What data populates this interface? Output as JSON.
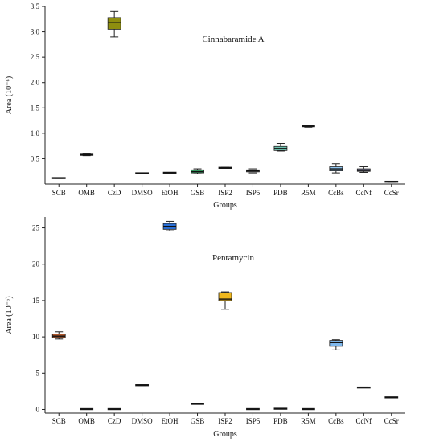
{
  "chart_data": [
    {
      "type": "box",
      "title": "Cinnabaramide A",
      "xlabel": "Groups",
      "ylabel": "Area (10⁻⁶)",
      "ylim": [
        0,
        3.5
      ],
      "yticks": [
        0.5,
        1.0,
        1.5,
        2.0,
        2.5,
        3.0,
        3.5
      ],
      "ytick_labels": [
        "0.5",
        "1.0",
        "1.5",
        "2.0",
        "2.5",
        "3.0",
        "3.5"
      ],
      "categories": [
        "SCB",
        "OMB",
        "CzD",
        "DMSO",
        "EtOH",
        "GSB",
        "ISP2",
        "ISP5",
        "PDB",
        "R5M",
        "CcBs",
        "CcNf",
        "CcSr"
      ],
      "boxes": [
        {
          "min": 0.11,
          "q1": 0.115,
          "median": 0.115,
          "q3": 0.12,
          "max": 0.125,
          "color": "#2e2e2e"
        },
        {
          "min": 0.56,
          "q1": 0.565,
          "median": 0.575,
          "q3": 0.59,
          "max": 0.6,
          "color": "#6f6f6f"
        },
        {
          "min": 2.9,
          "q1": 3.05,
          "median": 3.18,
          "q3": 3.28,
          "max": 3.4,
          "color": "#8f8f0f"
        },
        {
          "min": 0.21,
          "q1": 0.21,
          "median": 0.21,
          "q3": 0.215,
          "max": 0.215,
          "color": "#2e2e2e"
        },
        {
          "min": 0.22,
          "q1": 0.22,
          "median": 0.225,
          "q3": 0.225,
          "max": 0.23,
          "color": "#2e2e2e"
        },
        {
          "min": 0.2,
          "q1": 0.22,
          "median": 0.245,
          "q3": 0.28,
          "max": 0.3,
          "color": "#3aa86a"
        },
        {
          "min": 0.31,
          "q1": 0.315,
          "median": 0.32,
          "q3": 0.325,
          "max": 0.33,
          "color": "#4a4a4a"
        },
        {
          "min": 0.22,
          "q1": 0.24,
          "median": 0.26,
          "q3": 0.28,
          "max": 0.3,
          "color": "#7a7a7a"
        },
        {
          "min": 0.65,
          "q1": 0.66,
          "median": 0.7,
          "q3": 0.74,
          "max": 0.8,
          "color": "#6fc2b0"
        },
        {
          "min": 1.12,
          "q1": 1.13,
          "median": 1.14,
          "q3": 1.15,
          "max": 1.16,
          "color": "#444444"
        },
        {
          "min": 0.22,
          "q1": 0.26,
          "median": 0.3,
          "q3": 0.34,
          "max": 0.4,
          "color": "#8ec4ef"
        },
        {
          "min": 0.23,
          "q1": 0.25,
          "median": 0.27,
          "q3": 0.3,
          "max": 0.34,
          "color": "#6a6a8a"
        },
        {
          "min": 0.035,
          "q1": 0.04,
          "median": 0.045,
          "q3": 0.05,
          "max": 0.055,
          "color": "#2e2e2e"
        }
      ]
    },
    {
      "type": "box",
      "title": "Pentamycin",
      "xlabel": "Groups",
      "ylabel": "Area (10⁻⁶)",
      "ylim": [
        -0.5,
        26.5
      ],
      "yticks": [
        0,
        5,
        10,
        15,
        20,
        25
      ],
      "ytick_labels": [
        "0",
        "5",
        "10",
        "15",
        "20",
        "25"
      ],
      "categories": [
        "SCB",
        "OMB",
        "CzD",
        "DMSO",
        "EtOH",
        "GSB",
        "ISP2",
        "ISP5",
        "PDB",
        "R5M",
        "CcBs",
        "CcNf",
        "CcSr"
      ],
      "boxes": [
        {
          "min": 9.7,
          "q1": 9.9,
          "median": 10.1,
          "q3": 10.4,
          "max": 10.7,
          "color": "#b0562a"
        },
        {
          "min": 0.05,
          "q1": 0.05,
          "median": 0.05,
          "q3": 0.05,
          "max": 0.05,
          "color": "#2e2e2e"
        },
        {
          "min": 0.05,
          "q1": 0.05,
          "median": 0.05,
          "q3": 0.05,
          "max": 0.05,
          "color": "#2e2e2e"
        },
        {
          "min": 3.3,
          "q1": 3.3,
          "median": 3.35,
          "q3": 3.4,
          "max": 3.4,
          "color": "#2e2e2e"
        },
        {
          "min": 24.6,
          "q1": 24.8,
          "median": 25.2,
          "q3": 25.6,
          "max": 25.9,
          "color": "#2a6fd6"
        },
        {
          "min": 0.75,
          "q1": 0.75,
          "median": 0.78,
          "q3": 0.8,
          "max": 0.8,
          "color": "#2e2e2e"
        },
        {
          "min": 13.8,
          "q1": 15.0,
          "median": 15.2,
          "q3": 16.1,
          "max": 16.2,
          "color": "#f0b81e"
        },
        {
          "min": 0.05,
          "q1": 0.05,
          "median": 0.05,
          "q3": 0.05,
          "max": 0.05,
          "color": "#2e2e2e"
        },
        {
          "min": 0.1,
          "q1": 0.1,
          "median": 0.1,
          "q3": 0.1,
          "max": 0.1,
          "color": "#2e2e2e"
        },
        {
          "min": 0.05,
          "q1": 0.05,
          "median": 0.05,
          "q3": 0.05,
          "max": 0.05,
          "color": "#2e2e2e"
        },
        {
          "min": 8.2,
          "q1": 8.7,
          "median": 9.2,
          "q3": 9.5,
          "max": 9.6,
          "color": "#7fb8ec"
        },
        {
          "min": 3.0,
          "q1": 3.0,
          "median": 3.05,
          "q3": 3.05,
          "max": 3.1,
          "color": "#2e2e2e"
        },
        {
          "min": 1.65,
          "q1": 1.65,
          "median": 1.68,
          "q3": 1.7,
          "max": 1.7,
          "color": "#2e2e2e"
        }
      ]
    }
  ]
}
